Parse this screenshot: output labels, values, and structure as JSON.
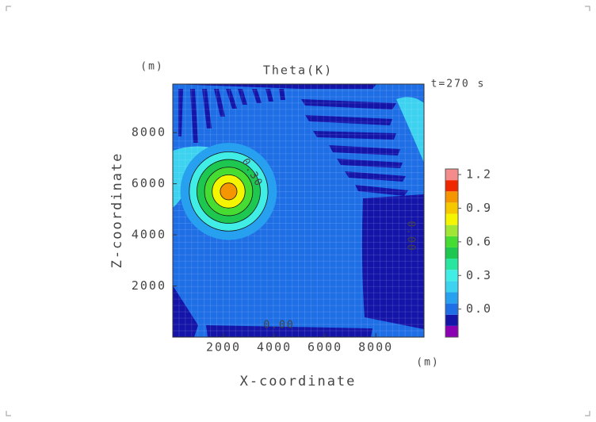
{
  "chart_data": {
    "type": "contour",
    "title": "Theta(K)",
    "time_label": "t=270 s",
    "x_label": "X-coordinate",
    "y_label": "Z-coordinate",
    "x_unit": "(m)",
    "y_unit": "(m)",
    "xlim": [
      0,
      9900
    ],
    "xticks": [
      2000,
      4000,
      6000,
      8000
    ],
    "ylim": [
      0,
      9900
    ],
    "yticks": [
      2000,
      4000,
      6000,
      8000
    ],
    "bubble": {
      "x": 2200,
      "y": 5700,
      "radii": [
        1900,
        1550,
        1250,
        950,
        650,
        330
      ],
      "values": [
        0.1,
        0.3,
        0.5,
        0.6,
        0.8,
        1.0
      ]
    },
    "annotations": [
      "0.30",
      "0.00",
      "0.00"
    ],
    "colorbar": {
      "levels": [
        -0.25,
        -0.15,
        -0.05,
        0.05,
        0.15,
        0.25,
        0.35,
        0.45,
        0.55,
        0.65,
        0.75,
        0.85,
        0.95,
        1.05,
        1.15,
        1.25
      ],
      "colors": [
        "#8c00b4",
        "#1414a8",
        "#1e6ee6",
        "#28a0f0",
        "#3cd2f0",
        "#40eee6",
        "#28e6a0",
        "#1ec850",
        "#46dc32",
        "#a0e632",
        "#f5f500",
        "#f5c800",
        "#f59600",
        "#f02800",
        "#f58c8c"
      ],
      "ticks": [
        {
          "value": 0,
          "label": "0.0"
        },
        0.3,
        0.6,
        0.9,
        1.2
      ]
    }
  }
}
